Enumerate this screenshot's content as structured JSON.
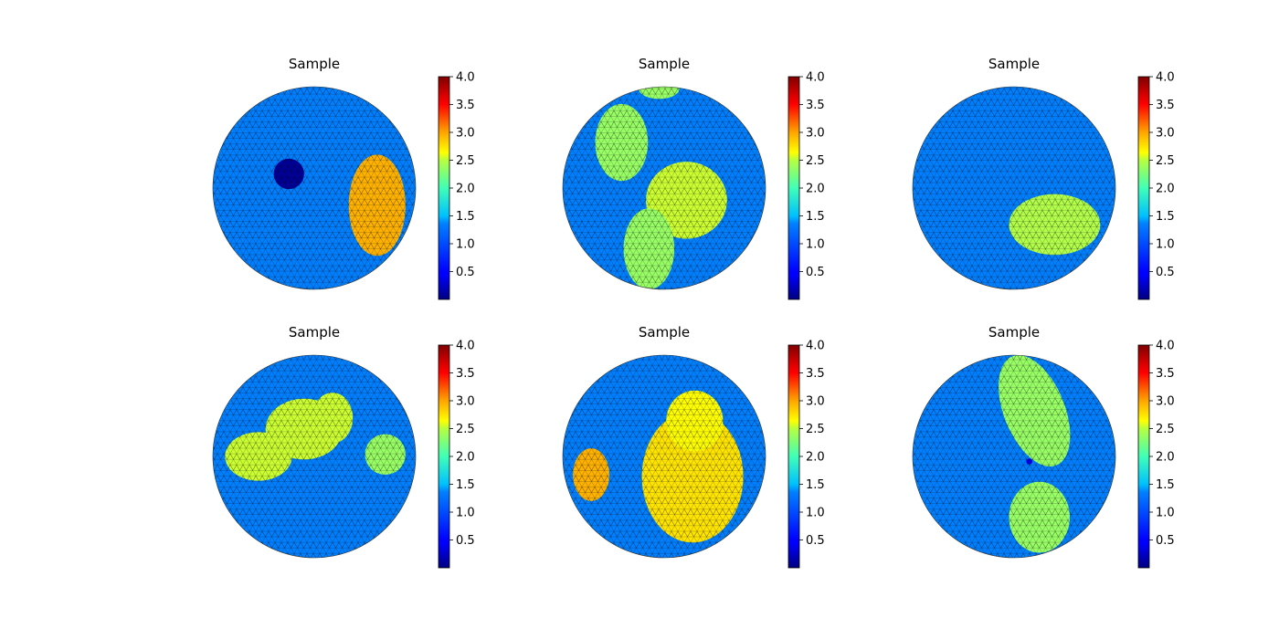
{
  "chart_data": [
    {
      "type": "heatmap",
      "title": "Sample",
      "colormap": "jet",
      "clim": [
        0,
        4
      ],
      "colorbar_ticks": [
        "4.0",
        "3.5",
        "3.0",
        "2.5",
        "2.0",
        "1.5",
        "1.0",
        "0.5"
      ],
      "background_value": 1.0,
      "regions": [
        {
          "value": 0.1,
          "shape": "blob",
          "cx": -0.25,
          "cy": -0.14,
          "rx": 0.15,
          "ry": 0.15
        },
        {
          "value": 2.8,
          "shape": "ellipse",
          "cx": 0.62,
          "cy": 0.17,
          "rx": 0.28,
          "ry": 0.5
        }
      ]
    },
    {
      "type": "heatmap",
      "title": "Sample",
      "colormap": "jet",
      "clim": [
        0,
        4
      ],
      "colorbar_ticks": [
        "4.0",
        "3.5",
        "3.0",
        "2.5",
        "2.0",
        "1.5",
        "1.0",
        "0.5"
      ],
      "background_value": 1.0,
      "regions": [
        {
          "value": 2.1,
          "shape": "ellipse",
          "cx": -0.42,
          "cy": -0.45,
          "rx": 0.26,
          "ry": 0.38
        },
        {
          "value": 2.3,
          "shape": "ellipse",
          "cx": 0.22,
          "cy": 0.12,
          "rx": 0.4,
          "ry": 0.38
        },
        {
          "value": 2.1,
          "shape": "ellipse",
          "cx": -0.15,
          "cy": 0.6,
          "rx": 0.25,
          "ry": 0.4
        },
        {
          "value": 2.1,
          "shape": "ellipse",
          "cx": -0.05,
          "cy": -0.98,
          "rx": 0.2,
          "ry": 0.1
        }
      ]
    },
    {
      "type": "heatmap",
      "title": "Sample",
      "colormap": "jet",
      "clim": [
        0,
        4
      ],
      "colorbar_ticks": [
        "4.0",
        "3.5",
        "3.0",
        "2.5",
        "2.0",
        "1.5",
        "1.0",
        "0.5"
      ],
      "background_value": 1.0,
      "regions": [
        {
          "value": 2.2,
          "shape": "ellipse",
          "cx": 0.4,
          "cy": 0.36,
          "rx": 0.45,
          "ry": 0.3
        }
      ]
    },
    {
      "type": "heatmap",
      "title": "Sample",
      "colormap": "jet",
      "clim": [
        0,
        4
      ],
      "colorbar_ticks": [
        "4.0",
        "3.5",
        "3.0",
        "2.5",
        "2.0",
        "1.5",
        "1.0",
        "0.5"
      ],
      "background_value": 1.0,
      "regions": [
        {
          "value": 2.3,
          "shape": "ellipse",
          "cx": -0.55,
          "cy": 0.0,
          "rx": 0.33,
          "ry": 0.24
        },
        {
          "value": 2.3,
          "shape": "ellipse",
          "cx": -0.1,
          "cy": -0.27,
          "rx": 0.38,
          "ry": 0.3
        },
        {
          "value": 2.3,
          "shape": "ellipse",
          "cx": 0.18,
          "cy": -0.38,
          "rx": 0.2,
          "ry": 0.25
        },
        {
          "value": 2.1,
          "shape": "ellipse",
          "cx": 0.7,
          "cy": -0.02,
          "rx": 0.2,
          "ry": 0.2
        }
      ]
    },
    {
      "type": "heatmap",
      "title": "Sample",
      "colormap": "jet",
      "clim": [
        0,
        4
      ],
      "colorbar_ticks": [
        "4.0",
        "3.5",
        "3.0",
        "2.5",
        "2.0",
        "1.5",
        "1.0",
        "0.5"
      ],
      "background_value": 1.0,
      "regions": [
        {
          "value": 2.8,
          "shape": "ellipse",
          "cx": -0.72,
          "cy": 0.18,
          "rx": 0.18,
          "ry": 0.26
        },
        {
          "value": 2.6,
          "shape": "ellipse",
          "cx": 0.28,
          "cy": 0.2,
          "rx": 0.5,
          "ry": 0.65
        },
        {
          "value": 2.5,
          "shape": "ellipse",
          "cx": 0.3,
          "cy": -0.35,
          "rx": 0.28,
          "ry": 0.3
        }
      ]
    },
    {
      "type": "heatmap",
      "title": "Sample",
      "colormap": "jet",
      "clim": [
        0,
        4
      ],
      "colorbar_ticks": [
        "4.0",
        "3.5",
        "3.0",
        "2.5",
        "2.0",
        "1.5",
        "1.0",
        "0.5"
      ],
      "background_value": 1.0,
      "regions": [
        {
          "value": 2.1,
          "shape": "ellipse",
          "cx": 0.2,
          "cy": -0.45,
          "rx": 0.3,
          "ry": 0.58,
          "angle": -22
        },
        {
          "value": 2.1,
          "shape": "ellipse",
          "cx": 0.25,
          "cy": 0.6,
          "rx": 0.3,
          "ry": 0.35
        },
        {
          "value": 0.4,
          "shape": "ellipse",
          "cx": 0.15,
          "cy": 0.05,
          "rx": 0.03,
          "ry": 0.03
        }
      ]
    }
  ]
}
